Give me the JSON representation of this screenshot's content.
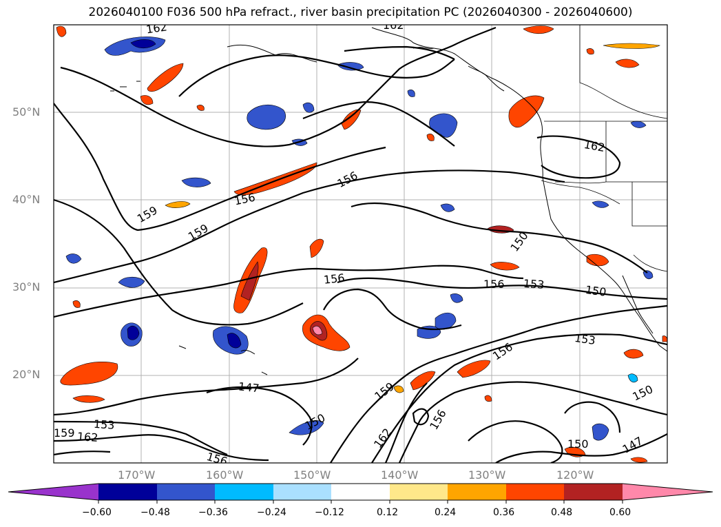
{
  "title": "2026040100 F036 500 hPa refract., river basin precipitation PC (2026040300 - 2026040600)",
  "lat_labels": [
    "50°N",
    "40°N",
    "30°N",
    "20°N"
  ],
  "lon_labels": [
    "170°W",
    "160°W",
    "150°W",
    "140°W",
    "130°W",
    "120°W"
  ],
  "colorbar": {
    "ticks": [
      "−0.60",
      "−0.48",
      "−0.36",
      "−0.24",
      "−0.12",
      "0.12",
      "0.24",
      "0.36",
      "0.48",
      "0.60"
    ],
    "colors": [
      "#9933cc",
      "#000099",
      "#3355cc",
      "#00bbff",
      "#aae0ff",
      "#ffffff",
      "#ffe88a",
      "#ffa500",
      "#ff4500",
      "#b22222",
      "#ff88aa",
      "#ff88aa"
    ]
  },
  "contour_labels": [
    "162",
    "162",
    "162",
    "159",
    "159",
    "159",
    "156",
    "156",
    "156",
    "156",
    "156",
    "156",
    "156",
    "153",
    "153",
    "153",
    "150",
    "150",
    "150",
    "150",
    "150",
    "147",
    "147",
    "162",
    "159",
    "162"
  ]
}
